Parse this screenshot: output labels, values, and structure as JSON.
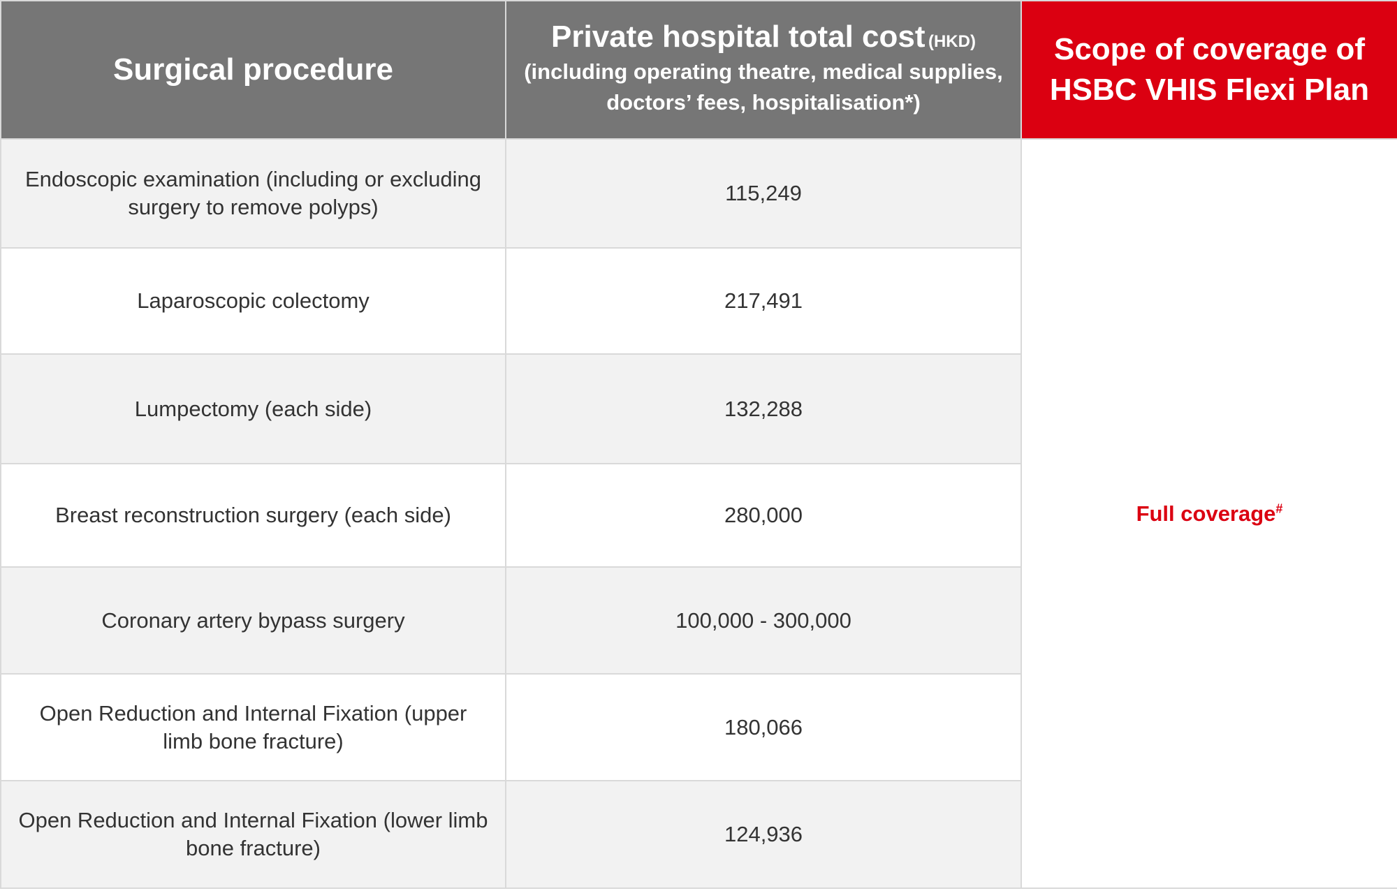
{
  "colors": {
    "header_gray": "#767676",
    "header_red": "#db0011",
    "row_shade": "#f2f2f2",
    "row_plain": "#ffffff",
    "border": "#d9d9d9",
    "body_text": "#333333",
    "accent_text": "#db0011"
  },
  "header": {
    "procedure": "Surgical procedure",
    "cost_main": "Private hospital total cost",
    "cost_unit": "(HKD)",
    "cost_sub": "(including operating theatre, medical supplies, doctors’ fees, hospitalisation*)",
    "coverage": "Scope of coverage of HSBC VHIS Flexi Plan"
  },
  "rows": [
    {
      "procedure": "Endoscopic examination (including or excluding surgery to remove polyps)",
      "cost": "115,249"
    },
    {
      "procedure": "Laparoscopic colectomy",
      "cost": "217,491"
    },
    {
      "procedure": "Lumpectomy (each side)",
      "cost": "132,288"
    },
    {
      "procedure": "Breast reconstruction surgery (each side)",
      "cost": "280,000"
    },
    {
      "procedure": "Coronary artery bypass surgery",
      "cost": "100,000 - 300,000"
    },
    {
      "procedure": "Open Reduction and Internal Fixation (upper limb bone fracture)",
      "cost": "180,066"
    },
    {
      "procedure": "Open Reduction and Internal Fixation (lower limb bone fracture)",
      "cost": "124,936"
    }
  ],
  "coverage": {
    "text": "Full coverage",
    "mark": "#"
  }
}
